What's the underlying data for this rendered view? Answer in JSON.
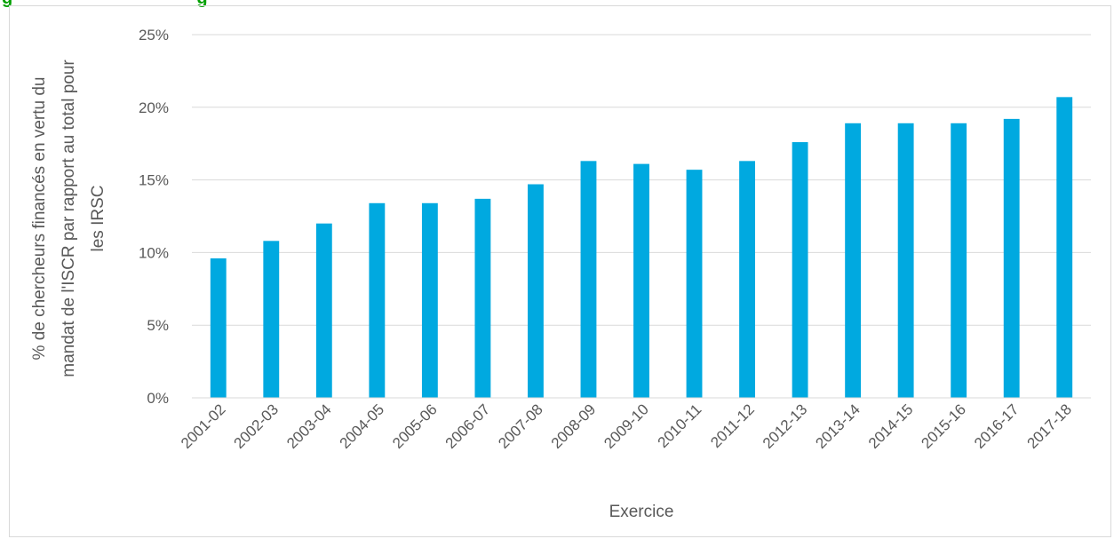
{
  "header": {
    "partial_title_start": "g",
    "partial_title_end": "g",
    "title_color": "#00a000"
  },
  "chart_data": {
    "type": "bar",
    "title": "",
    "xlabel": "Exercice",
    "ylabel_lines": [
      "% de chercheurs financés en vertu du",
      "mandat de l'ISCR par rapport au total pour",
      "les IRSC"
    ],
    "categories": [
      "2001-02",
      "2002-03",
      "2003-04",
      "2004-05",
      "2005-06",
      "2006-07",
      "2007-08",
      "2008-09",
      "2009-10",
      "2010-11",
      "2011-12",
      "2012-13",
      "2013-14",
      "2014-15",
      "2015-16",
      "2016-17",
      "2017-18"
    ],
    "series": [
      {
        "values": [
          9.6,
          10.8,
          12.0,
          13.4,
          13.4,
          13.7,
          14.7,
          16.3,
          16.1,
          15.7,
          16.3,
          17.6,
          18.9,
          18.9,
          18.9,
          19.2,
          20.7
        ]
      }
    ],
    "ylim": [
      0,
      25
    ],
    "yticks": [
      0,
      5,
      10,
      15,
      20,
      25
    ],
    "ytick_labels": [
      "0%",
      "5%",
      "10%",
      "15%",
      "20%",
      "25%"
    ],
    "grid": true,
    "bar_color": "#00a9e0",
    "grid_color": "#d9d9d9",
    "axis_color": "#d9d9d9",
    "legend": "none"
  }
}
